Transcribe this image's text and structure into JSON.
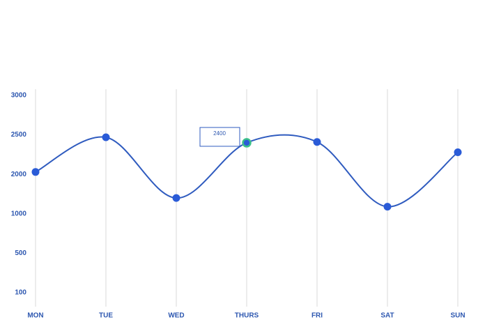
{
  "chart_data": {
    "type": "line",
    "categories": [
      "MON",
      "TUE",
      "WED",
      "THURS",
      "FRI",
      "SAT",
      "SUN"
    ],
    "values": [
      2030,
      2470,
      1400,
      2400,
      2410,
      1180,
      2280
    ],
    "color": "#2f5bbf",
    "marker_color": "#2a5bd7",
    "highlight": 3,
    "highlight_color": "#3cc08a",
    "ylim": [
      100,
      3000
    ],
    "yticks": [
      100,
      500,
      1000,
      2000,
      2500,
      3000
    ],
    "grid": true
  }
}
